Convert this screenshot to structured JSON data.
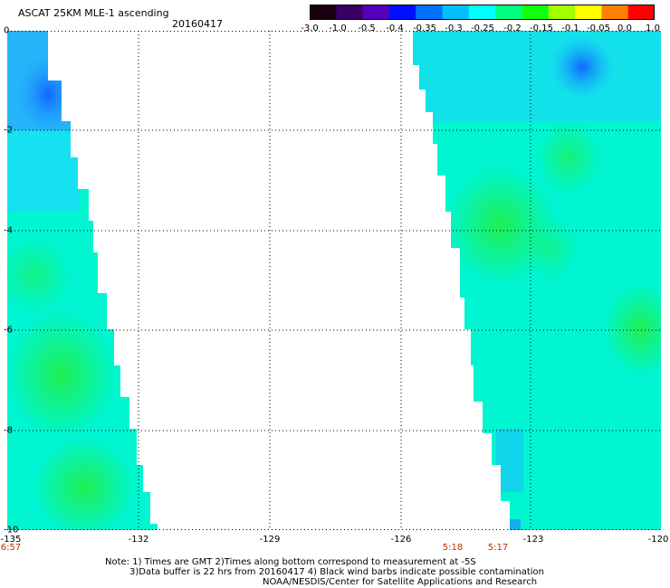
{
  "title": "ASCAT 25KM MLE-1 ascending",
  "date": "20160417",
  "colorbar": {
    "labels": [
      "-3.0",
      "-1.0",
      "-0.5",
      "-0.4",
      "-0.35",
      "-0.3",
      "-0.25",
      "-0.2",
      "-0.15",
      "-0.1",
      "-0.05",
      "0.0",
      "1.0"
    ],
    "colors": [
      "#1a0010",
      "#3a0066",
      "#5500bb",
      "#0010ff",
      "#0070ff",
      "#00c0ff",
      "#00ffff",
      "#00ff80",
      "#10ff10",
      "#a0ff00",
      "#ffff00",
      "#ff8000",
      "#ff0000"
    ]
  },
  "map": {
    "y_labels": [
      "0",
      "-2",
      "-4",
      "-6",
      "-8",
      "-10"
    ],
    "x_labels": [
      "-135",
      "-132",
      "-129",
      "-126",
      "-123",
      "-120"
    ],
    "x_range": [
      -135,
      -120
    ],
    "y_range": [
      0,
      -10
    ],
    "times": [
      "6:57",
      "5:18",
      "5:17"
    ]
  },
  "notes": {
    "line1": "Note: 1) Times are GMT 2)Times along bottom correspond to measurement at -5S",
    "line2": "3)Data buffer is 22 hrs from 20160417 4) Black wind barbs indicate possible contamination",
    "line3": "NOAA/NESDIS/Center for Satellite Applications and Research"
  }
}
